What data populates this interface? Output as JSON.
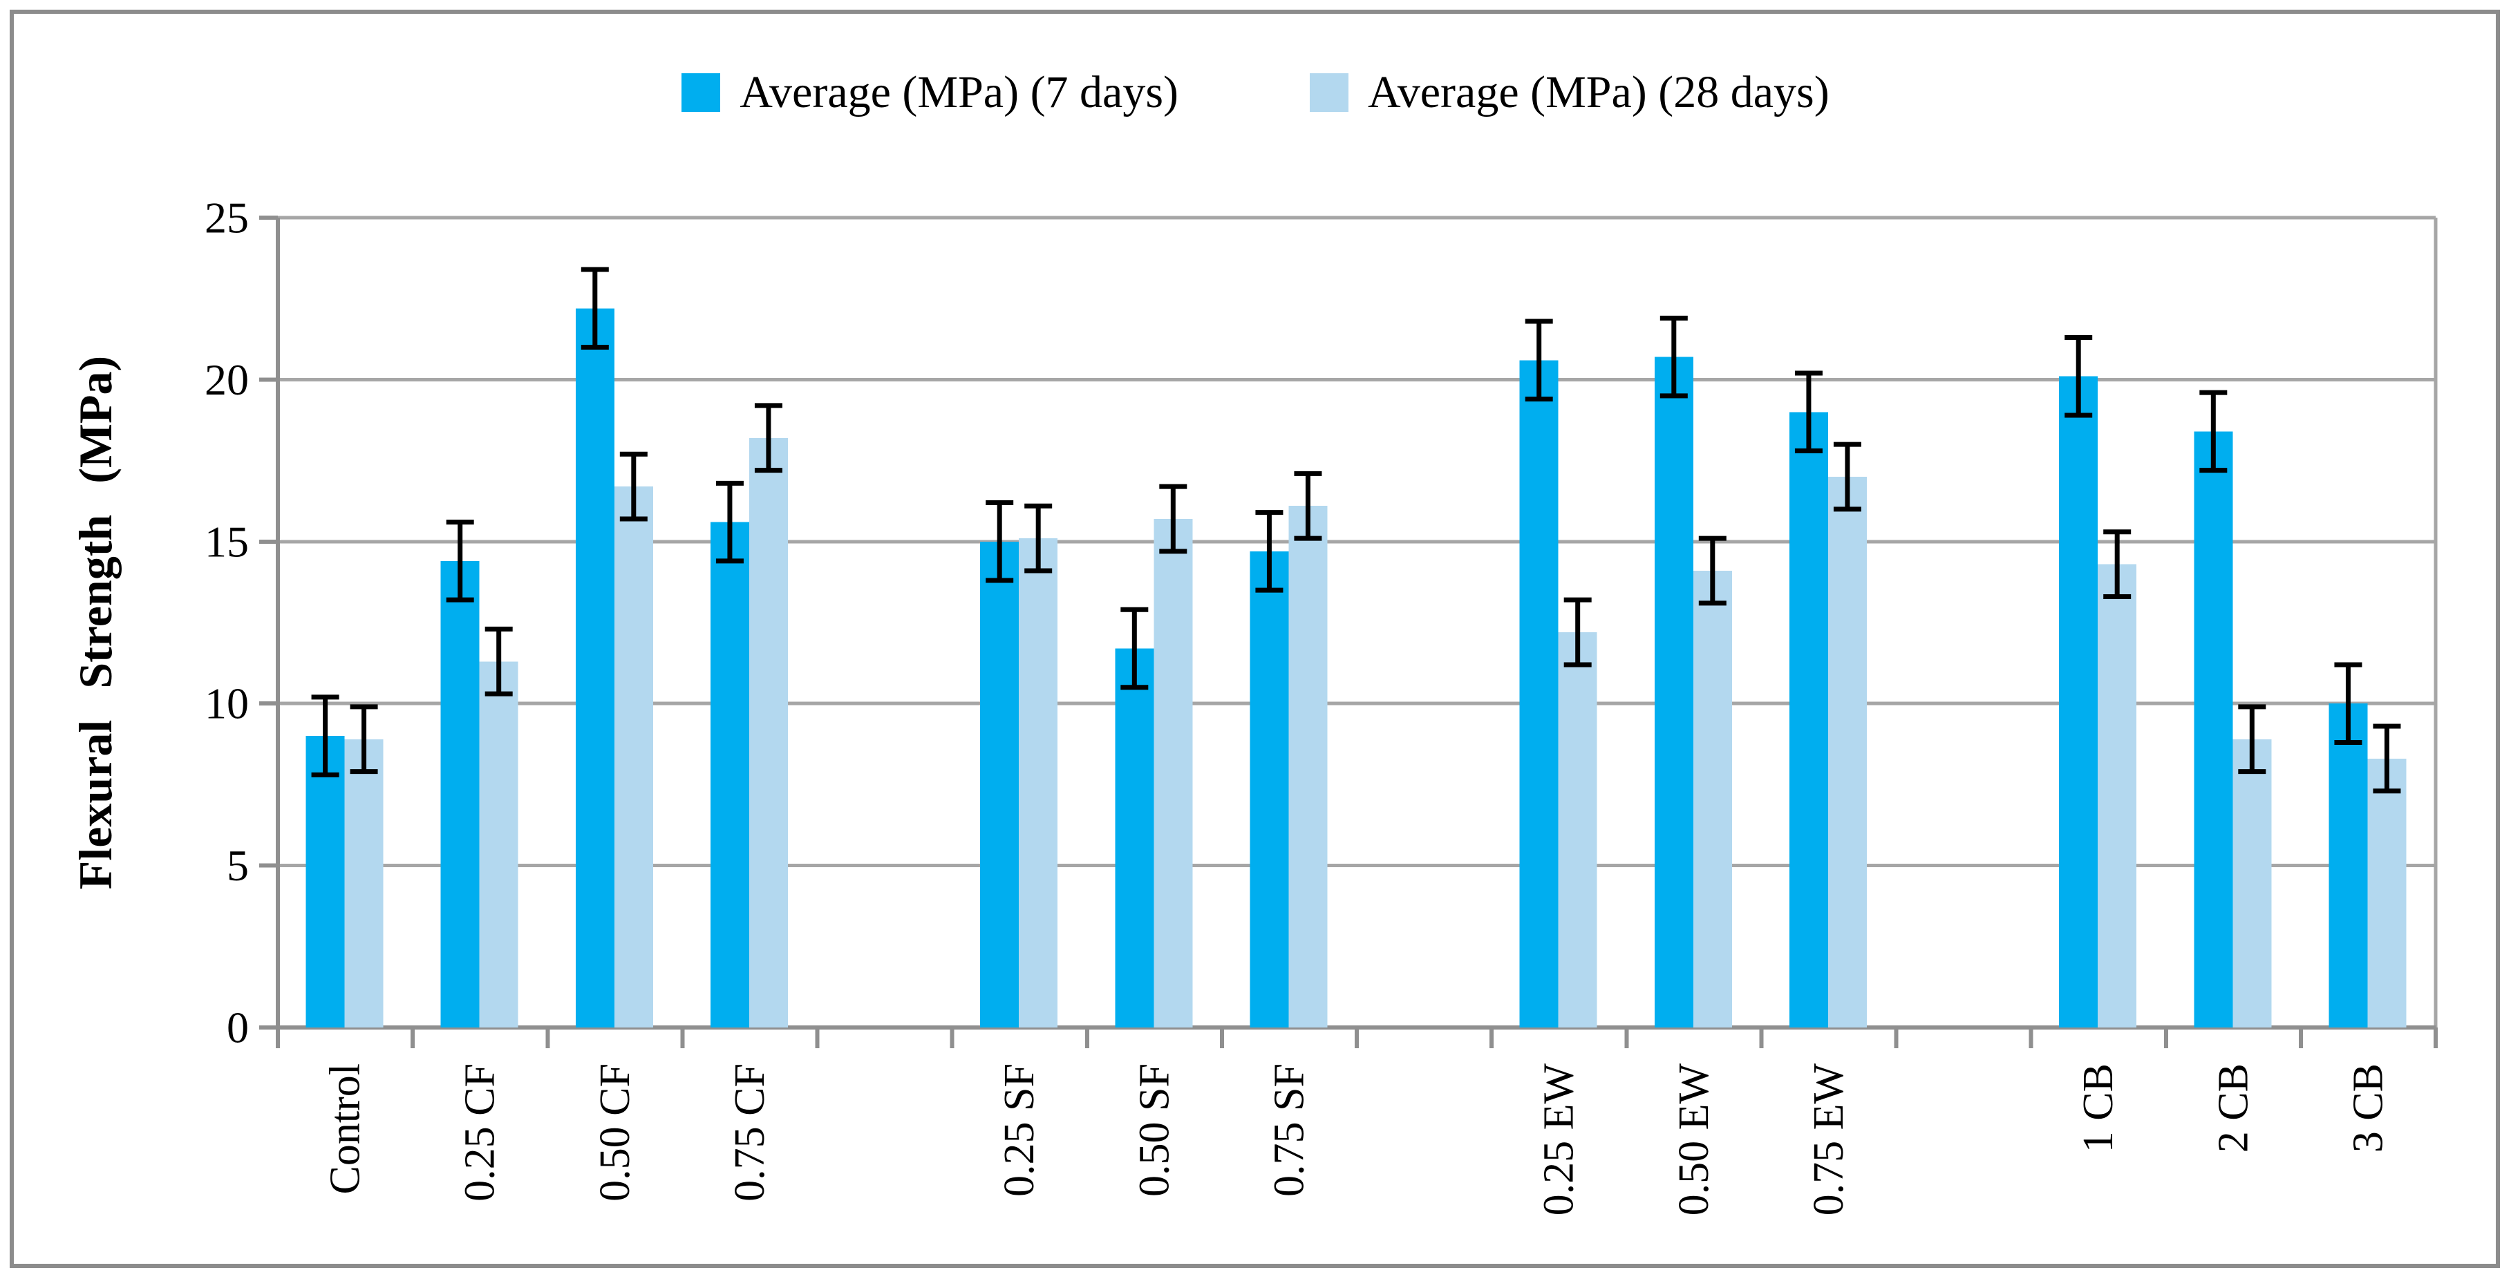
{
  "legend": {
    "items": [
      {
        "label": "Average (MPa) (7 days)",
        "color": "#00AEEF"
      },
      {
        "label": "Average (MPa) (28 days)",
        "color": "#B3D8EF"
      }
    ]
  },
  "axes": {
    "y_title": "Flexural Strength (MPa)"
  },
  "colors": {
    "series_7_days": "#00AEEF",
    "series_28_days": "#B3D8EF",
    "gridline": "#A6A6A6",
    "axis_line": "#8F8F8F",
    "frame_border": "#8C8C8C",
    "error_bar": "#000000",
    "text": "#000000"
  },
  "chart_data": {
    "type": "bar",
    "title": "",
    "xlabel": "",
    "ylabel": "Flexural Strength (MPa)",
    "ylim": [
      0,
      25
    ],
    "y_ticks": [
      0,
      5,
      10,
      15,
      20,
      25
    ],
    "grid": true,
    "legend_position": "top",
    "categories": [
      "Control",
      "0.25 CF",
      "0.50 CF",
      "0.75 CF",
      "0.25 SF",
      "0.50 SF",
      "0.75 SF",
      "0.25 EW",
      "0.50 EW",
      "0.75 EW",
      "1 CB",
      "2 CB",
      "3 CB"
    ],
    "group_gaps_after": [
      "0.75 CF",
      "0.75 SF",
      "0.75 EW"
    ],
    "series": [
      {
        "name": "Average (MPa) (7 days)",
        "color": "#00AEEF",
        "values": [
          9.0,
          14.4,
          22.2,
          15.6,
          15.0,
          11.7,
          14.7,
          20.6,
          20.7,
          19.0,
          20.1,
          18.4,
          10.0
        ],
        "errors": [
          1.2,
          1.2,
          1.2,
          1.2,
          1.2,
          1.2,
          1.2,
          1.2,
          1.2,
          1.2,
          1.2,
          1.2,
          1.2
        ]
      },
      {
        "name": "Average (MPa) (28 days)",
        "color": "#B3D8EF",
        "values": [
          8.9,
          11.3,
          16.7,
          18.2,
          15.1,
          15.7,
          16.1,
          12.2,
          14.1,
          17.0,
          14.3,
          8.9,
          8.3
        ],
        "errors": [
          1.0,
          1.0,
          1.0,
          1.0,
          1.0,
          1.0,
          1.0,
          1.0,
          1.0,
          1.0,
          1.0,
          1.0,
          1.0
        ]
      }
    ]
  }
}
